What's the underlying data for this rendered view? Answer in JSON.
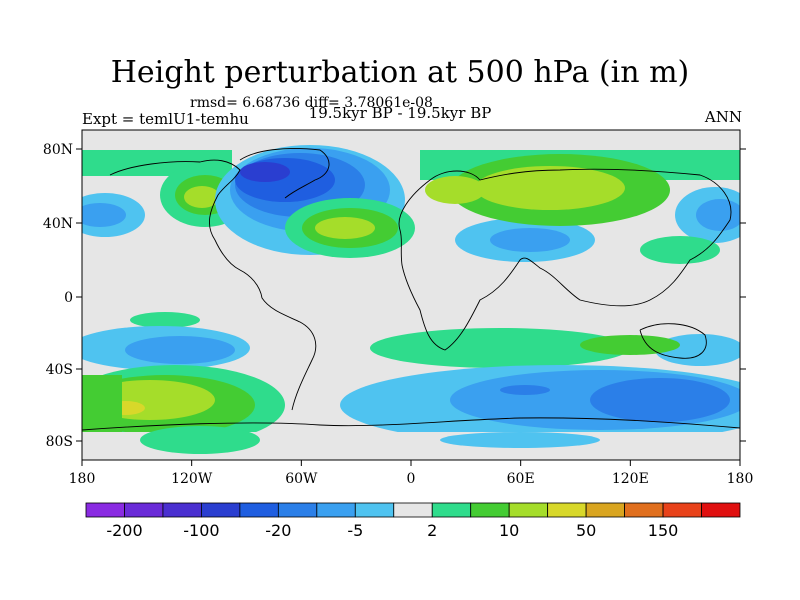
{
  "title": "Height perturbation at 500 hPa (in m)",
  "stats": "rmsd= 6.68736 diff= 3.78061e-08",
  "experiment": "Expt = temlU1-temhu",
  "period": "19.5kyr BP - 19.5kyr BP",
  "season": "ANN",
  "lat_ticks": [
    "80N",
    "40N",
    "0",
    "40S",
    "80S"
  ],
  "lon_ticks": [
    "180",
    "120W",
    "60W",
    "0",
    "60E",
    "120E",
    "180"
  ],
  "colorbar": {
    "colors": [
      "#8a2be2",
      "#6a2bd8",
      "#4a2fd0",
      "#2a3ed0",
      "#1f5ee0",
      "#2b7fe8",
      "#3aa0f0",
      "#4fc3f0",
      "#e6e6e6",
      "#2fdc8c",
      "#44cc33",
      "#a5dd2a",
      "#d8d82a",
      "#d9a520",
      "#e06f1e",
      "#e8421a",
      "#e01010"
    ],
    "labels": [
      "-200",
      "-100",
      "-20",
      "-5",
      "2",
      "10",
      "50",
      "150"
    ]
  }
}
